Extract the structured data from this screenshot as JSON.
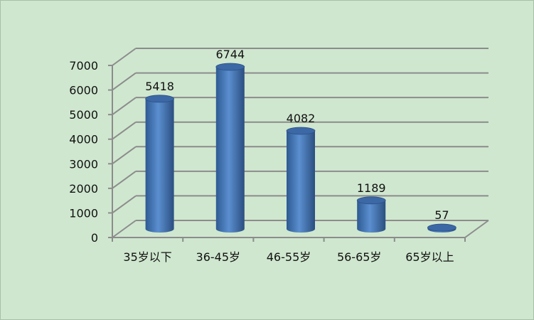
{
  "chart_data": {
    "type": "bar",
    "style": "3d-cylinder",
    "categories": [
      "35岁以下",
      "36-45岁",
      "46-55岁",
      "56-65岁",
      "65岁以上"
    ],
    "values": [
      5418,
      6744,
      4082,
      1189,
      57
    ],
    "data_labels": [
      "5418",
      "6744",
      "4082",
      "1189",
      "57"
    ],
    "title": "",
    "xlabel": "",
    "ylabel": "",
    "ylim": [
      0,
      7000
    ],
    "yticks": [
      "0",
      "1000",
      "2000",
      "3000",
      "4000",
      "5000",
      "6000",
      "7000"
    ],
    "grid": true,
    "legend": "none",
    "colors": {
      "background": "#cfe7cf",
      "bar": "#4a7ebf",
      "bar_dark": "#2d5488",
      "grid": "#8c8c8c"
    }
  }
}
